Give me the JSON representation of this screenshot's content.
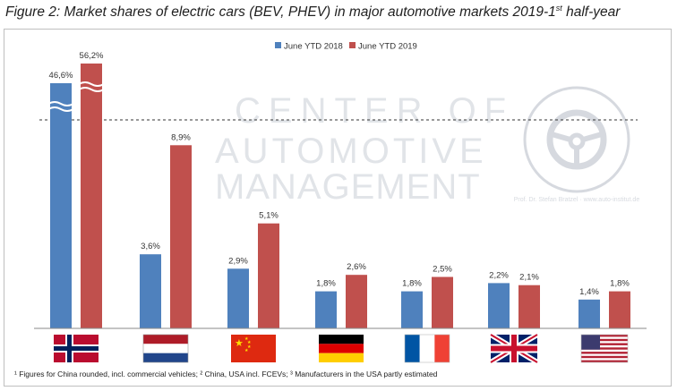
{
  "title": {
    "text": "Figure 2: Market shares of electric cars (BEV, PHEV) in major automotive markets 2019-1",
    "sup": "st",
    "suffix": " half-year"
  },
  "watermark": {
    "line1": "CENTER OF",
    "line2": "AUTOMOTIVE",
    "line3": "MANAGEMENT",
    "seal_text": "Prof. Dr. Stefan Bratzel · www.auto-institut.de"
  },
  "footnote": "¹ Figures for China rounded, incl. commercial vehicles; ² China, USA incl. FCEVs; ³ Manufacturers in the USA partly estimated",
  "colors": {
    "series_2018": "#4f81bd",
    "series_2019": "#c0504d",
    "axis": "#8a8a8a"
  },
  "chart_data": {
    "type": "bar",
    "categories": [
      "Norway",
      "Netherlands",
      "China",
      "Germany",
      "France",
      "United Kingdom",
      "USA"
    ],
    "category_display": "flags",
    "axis_break": true,
    "series": [
      {
        "name": "June YTD 2018",
        "values": [
          46.6,
          3.6,
          2.9,
          1.8,
          1.8,
          2.2,
          1.4
        ],
        "labels": [
          "46,6%",
          "3,6%",
          "2,9%",
          "1,8%",
          "1,8%",
          "2,2%",
          "1,4%"
        ]
      },
      {
        "name": "June YTD 2019",
        "values": [
          56.2,
          8.9,
          5.1,
          2.6,
          2.5,
          2.1,
          1.8
        ],
        "labels": [
          "56,2%",
          "8,9%",
          "5,1%",
          "2,6%",
          "2,5%",
          "2,1%",
          "1,8%"
        ]
      }
    ],
    "legend": "top-center",
    "grid": false
  }
}
